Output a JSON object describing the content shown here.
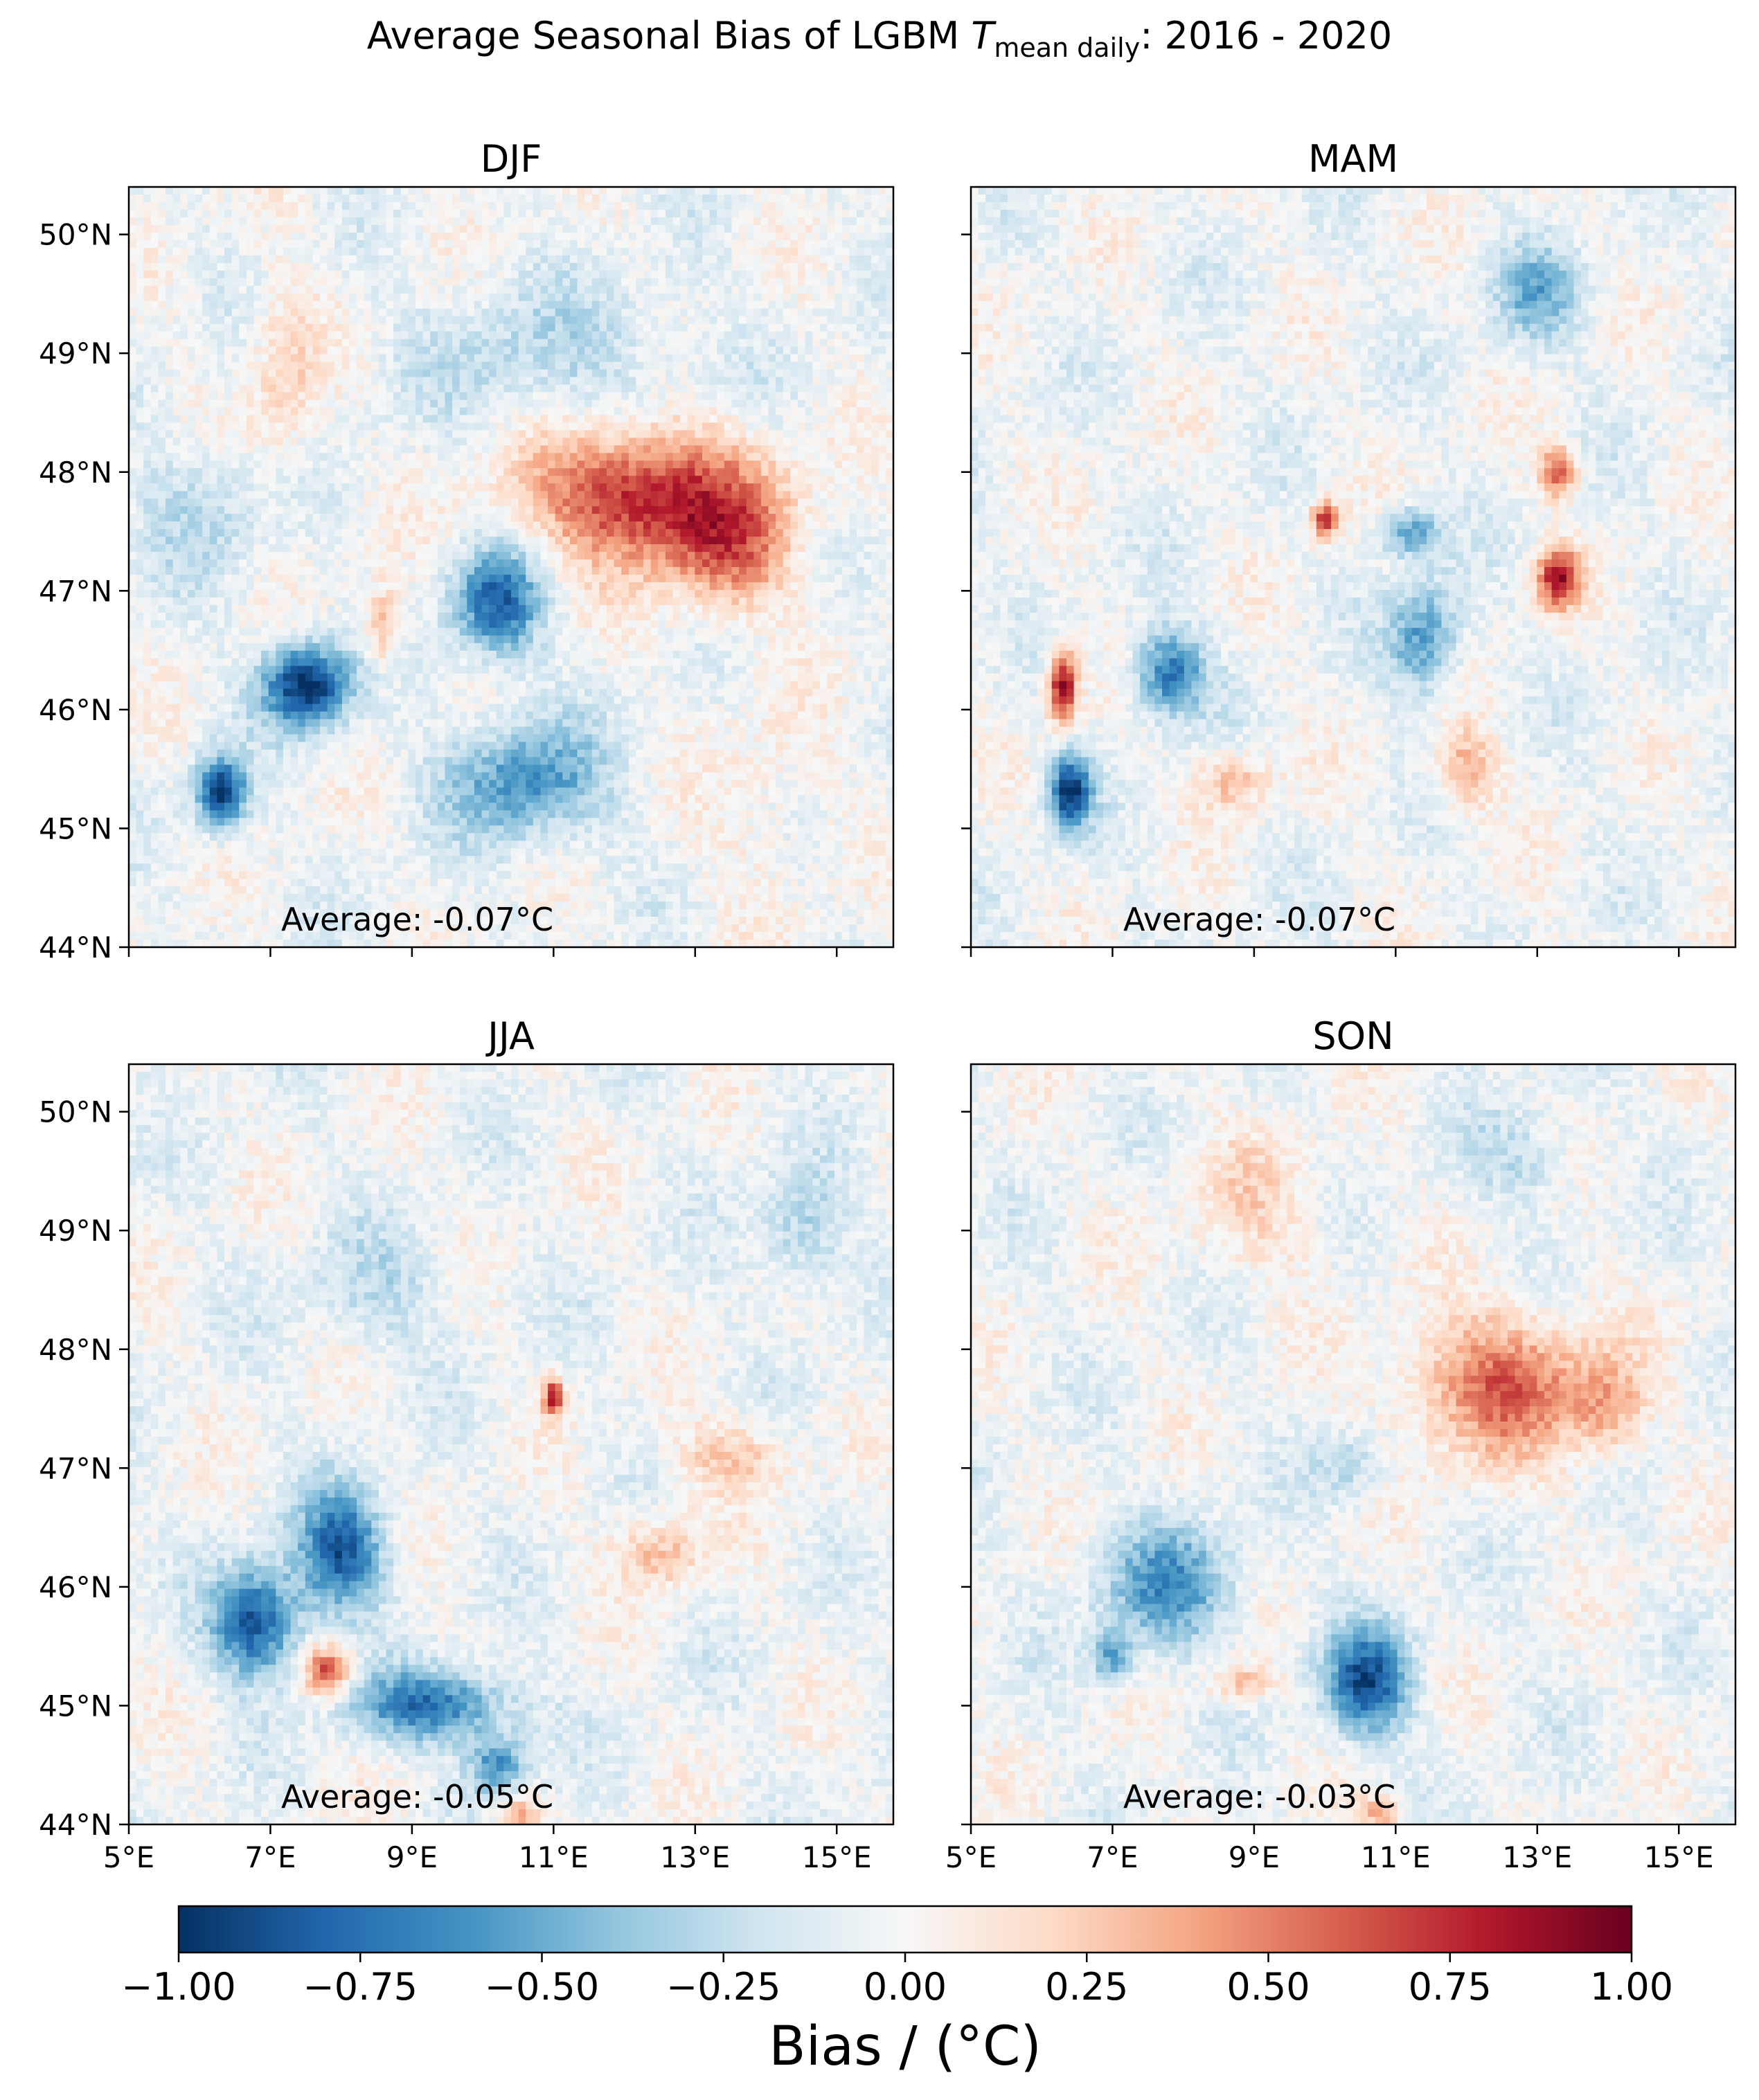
{
  "figure": {
    "title_main": "Average Seasonal Bias of LGBM ",
    "title_var": "T",
    "title_sub": "mean daily",
    "title_tail": ": 2016 - 2020"
  },
  "chart_data": [
    {
      "type": "heatmap",
      "title": "DJF",
      "annotation": "Average: -0.07°C",
      "xlim": [
        5,
        15.8
      ],
      "ylim": [
        44,
        50.4
      ],
      "x_ticks": [
        5,
        7,
        9,
        11,
        13,
        15
      ],
      "x_tick_labels": [
        "5°E",
        "7°E",
        "9°E",
        "11°E",
        "13°E",
        "15°E"
      ],
      "y_ticks": [
        44,
        45,
        46,
        47,
        48,
        49,
        50
      ],
      "y_tick_labels": [
        "44°N",
        "45°N",
        "46°N",
        "47°N",
        "48°N",
        "49°N",
        "50°N"
      ],
      "show_x_tick_labels": false,
      "show_y_tick_labels": true,
      "features": [
        {
          "lon": 12.3,
          "lat": 47.8,
          "rlon": 1.6,
          "rlat": 0.55,
          "v": 0.85
        },
        {
          "lon": 13.5,
          "lat": 47.3,
          "rlon": 0.9,
          "rlat": 0.5,
          "v": 0.45
        },
        {
          "lon": 7.5,
          "lat": 46.2,
          "rlon": 0.6,
          "rlat": 0.35,
          "v": -1.0
        },
        {
          "lon": 6.3,
          "lat": 45.3,
          "rlon": 0.35,
          "rlat": 0.3,
          "v": -0.9
        },
        {
          "lon": 10.2,
          "lat": 46.9,
          "rlon": 0.6,
          "rlat": 0.45,
          "v": -0.75
        },
        {
          "lon": 10.6,
          "lat": 45.4,
          "rlon": 1.1,
          "rlat": 0.5,
          "v": -0.55
        },
        {
          "lon": 8.6,
          "lat": 46.7,
          "rlon": 0.25,
          "rlat": 0.35,
          "v": 0.4
        },
        {
          "lon": 7.2,
          "lat": 48.8,
          "rlon": 0.5,
          "rlat": 0.8,
          "v": 0.25
        },
        {
          "lon": 11.0,
          "lat": 49.0,
          "rlon": 2.0,
          "rlat": 0.6,
          "v": -0.22
        },
        {
          "lon": 14.0,
          "lat": 45.2,
          "rlon": 0.8,
          "rlat": 0.9,
          "v": 0.12
        },
        {
          "lon": 6.0,
          "lat": 47.7,
          "rlon": 1.0,
          "rlat": 0.6,
          "v": -0.2
        }
      ]
    },
    {
      "type": "heatmap",
      "title": "MAM",
      "annotation": "Average: -0.07°C",
      "xlim": [
        5,
        15.8
      ],
      "ylim": [
        44,
        50.4
      ],
      "x_ticks": [
        5,
        7,
        9,
        11,
        13,
        15
      ],
      "x_tick_labels": [
        "5°E",
        "7°E",
        "9°E",
        "11°E",
        "13°E",
        "15°E"
      ],
      "y_ticks": [
        44,
        45,
        46,
        47,
        48,
        49,
        50
      ],
      "y_tick_labels": [
        "44°N",
        "45°N",
        "46°N",
        "47°N",
        "48°N",
        "49°N",
        "50°N"
      ],
      "show_x_tick_labels": false,
      "show_y_tick_labels": false,
      "features": [
        {
          "lon": 6.3,
          "lat": 46.2,
          "rlon": 0.2,
          "rlat": 0.3,
          "v": 0.95
        },
        {
          "lon": 6.4,
          "lat": 45.3,
          "rlon": 0.3,
          "rlat": 0.3,
          "v": -0.95
        },
        {
          "lon": 7.8,
          "lat": 46.3,
          "rlon": 0.5,
          "rlat": 0.35,
          "v": -0.7
        },
        {
          "lon": 11.4,
          "lat": 46.6,
          "rlon": 0.5,
          "rlat": 0.45,
          "v": -0.55
        },
        {
          "lon": 10.0,
          "lat": 47.6,
          "rlon": 0.2,
          "rlat": 0.15,
          "v": 0.75
        },
        {
          "lon": 13.3,
          "lat": 47.1,
          "rlon": 0.3,
          "rlat": 0.25,
          "v": 0.85
        },
        {
          "lon": 13.3,
          "lat": 48.0,
          "rlon": 0.25,
          "rlat": 0.2,
          "v": 0.7
        },
        {
          "lon": 11.2,
          "lat": 47.5,
          "rlon": 0.4,
          "rlat": 0.2,
          "v": -0.55
        },
        {
          "lon": 12.0,
          "lat": 45.5,
          "rlon": 0.4,
          "rlat": 0.35,
          "v": 0.4
        },
        {
          "lon": 8.7,
          "lat": 45.4,
          "rlon": 0.5,
          "rlat": 0.25,
          "v": 0.35
        },
        {
          "lon": 13.0,
          "lat": 49.5,
          "rlon": 0.6,
          "rlat": 0.4,
          "v": -0.4
        }
      ]
    },
    {
      "type": "heatmap",
      "title": "JJA",
      "annotation": "Average: -0.05°C",
      "xlim": [
        5,
        15.8
      ],
      "ylim": [
        44,
        50.4
      ],
      "x_ticks": [
        5,
        7,
        9,
        11,
        13,
        15
      ],
      "x_tick_labels": [
        "5°E",
        "7°E",
        "9°E",
        "11°E",
        "13°E",
        "15°E"
      ],
      "y_ticks": [
        44,
        45,
        46,
        47,
        48,
        49,
        50
      ],
      "y_tick_labels": [
        "44°N",
        "45°N",
        "46°N",
        "47°N",
        "48°N",
        "49°N",
        "50°N"
      ],
      "show_x_tick_labels": true,
      "show_y_tick_labels": true,
      "features": [
        {
          "lon": 6.8,
          "lat": 45.7,
          "rlon": 0.6,
          "rlat": 0.45,
          "v": -0.85
        },
        {
          "lon": 8.0,
          "lat": 46.3,
          "rlon": 0.6,
          "rlat": 0.5,
          "v": -0.8
        },
        {
          "lon": 7.8,
          "lat": 45.3,
          "rlon": 0.35,
          "rlat": 0.2,
          "v": 0.7
        },
        {
          "lon": 9.3,
          "lat": 45.0,
          "rlon": 1.1,
          "rlat": 0.3,
          "v": -0.7
        },
        {
          "lon": 10.2,
          "lat": 44.5,
          "rlon": 0.4,
          "rlat": 0.25,
          "v": -0.6
        },
        {
          "lon": 13.5,
          "lat": 47.1,
          "rlon": 0.8,
          "rlat": 0.3,
          "v": 0.3
        },
        {
          "lon": 12.5,
          "lat": 46.3,
          "rlon": 0.6,
          "rlat": 0.3,
          "v": 0.35
        },
        {
          "lon": 8.5,
          "lat": 48.5,
          "rlon": 1.0,
          "rlat": 0.5,
          "v": -0.2
        },
        {
          "lon": 14.5,
          "lat": 49.0,
          "rlon": 0.6,
          "rlat": 0.5,
          "v": -0.3
        },
        {
          "lon": 11.0,
          "lat": 47.6,
          "rlon": 0.15,
          "rlat": 0.15,
          "v": 0.85
        },
        {
          "lon": 10.5,
          "lat": 44.1,
          "rlon": 0.3,
          "rlat": 0.15,
          "v": 0.45
        }
      ]
    },
    {
      "type": "heatmap",
      "title": "SON",
      "annotation": "Average: -0.03°C",
      "xlim": [
        5,
        15.8
      ],
      "ylim": [
        44,
        50.4
      ],
      "x_ticks": [
        5,
        7,
        9,
        11,
        13,
        15
      ],
      "x_tick_labels": [
        "5°E",
        "7°E",
        "9°E",
        "11°E",
        "13°E",
        "15°E"
      ],
      "y_ticks": [
        44,
        45,
        46,
        47,
        48,
        49,
        50
      ],
      "y_tick_labels": [
        "44°N",
        "45°N",
        "46°N",
        "47°N",
        "48°N",
        "49°N",
        "50°N"
      ],
      "show_x_tick_labels": true,
      "show_y_tick_labels": false,
      "features": [
        {
          "lon": 12.5,
          "lat": 47.7,
          "rlon": 1.3,
          "rlat": 0.6,
          "v": 0.6
        },
        {
          "lon": 14.0,
          "lat": 47.5,
          "rlon": 0.5,
          "rlat": 0.4,
          "v": 0.35
        },
        {
          "lon": 10.6,
          "lat": 45.2,
          "rlon": 0.6,
          "rlat": 0.45,
          "v": -0.8
        },
        {
          "lon": 7.8,
          "lat": 46.0,
          "rlon": 0.9,
          "rlat": 0.5,
          "v": -0.55
        },
        {
          "lon": 7.0,
          "lat": 45.4,
          "rlon": 0.3,
          "rlat": 0.25,
          "v": -0.5
        },
        {
          "lon": 8.8,
          "lat": 45.2,
          "rlon": 0.5,
          "rlat": 0.15,
          "v": 0.35
        },
        {
          "lon": 9.0,
          "lat": 49.2,
          "rlon": 1.0,
          "rlat": 0.6,
          "v": 0.2
        },
        {
          "lon": 12.8,
          "lat": 49.6,
          "rlon": 0.8,
          "rlat": 0.4,
          "v": -0.2
        },
        {
          "lon": 10.4,
          "lat": 47.0,
          "rlon": 0.5,
          "rlat": 0.3,
          "v": -0.25
        },
        {
          "lon": 10.8,
          "lat": 44.1,
          "rlon": 0.3,
          "rlat": 0.15,
          "v": 0.4
        }
      ]
    }
  ],
  "colorbar": {
    "label": "Bias / (°C)",
    "vmin": -1.0,
    "vmax": 1.0,
    "cmap": "RdBu_r",
    "ticks": [
      -1.0,
      -0.75,
      -0.5,
      -0.25,
      0.0,
      0.25,
      0.5,
      0.75,
      1.0
    ],
    "tick_labels": [
      "−1.00",
      "−0.75",
      "−0.50",
      "−0.25",
      "0.00",
      "0.25",
      "0.50",
      "0.75",
      "1.00"
    ],
    "stops": [
      "#053061",
      "#2166ac",
      "#4393c3",
      "#92c5de",
      "#d1e5f0",
      "#f7f7f7",
      "#fddbc7",
      "#f4a582",
      "#d6604d",
      "#b2182b",
      "#67001f"
    ]
  }
}
